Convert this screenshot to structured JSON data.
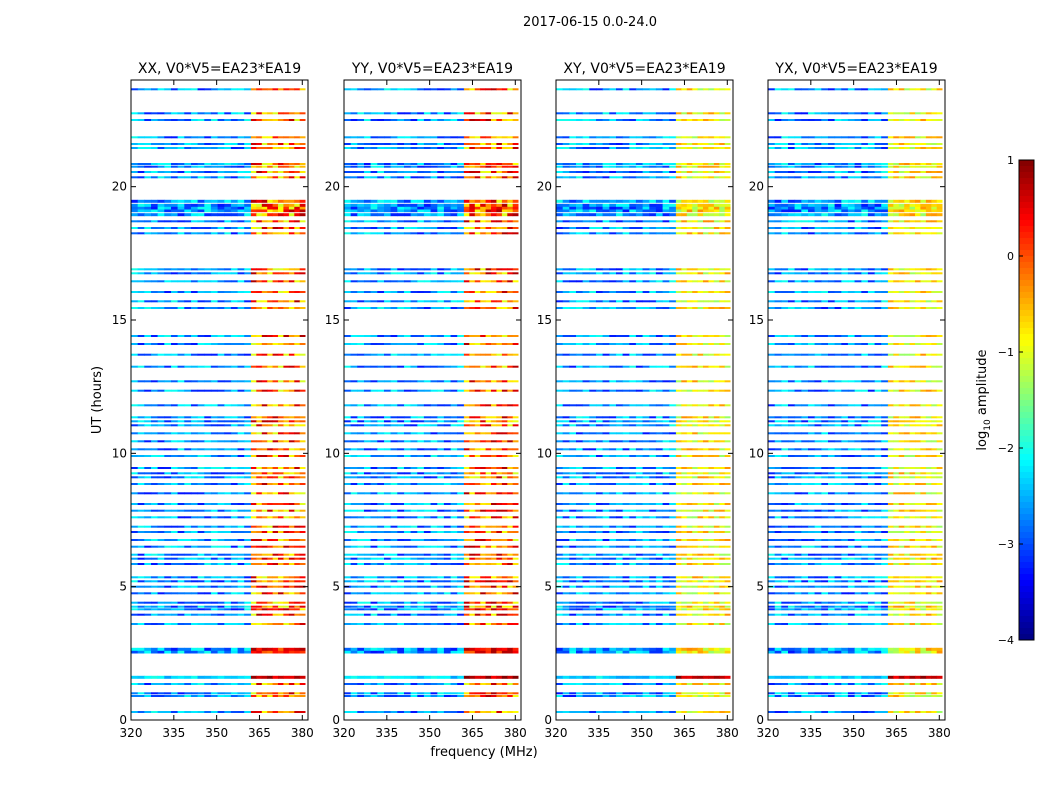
{
  "chart_data": {
    "type": "heatmap",
    "title": "2017-06-15 0.0-24.0",
    "xlabel": "frequency (MHz)",
    "ylabel": "UT (hours)",
    "colorbar_label": "log10 amplitude",
    "colorbar_label_main": "log",
    "colorbar_label_sub": "10",
    "colorbar_label_rest": " amplitude",
    "xlim": [
      320,
      382
    ],
    "ylim": [
      0,
      24
    ],
    "x_ticks": [
      320,
      335,
      350,
      365,
      380
    ],
    "y_ticks": [
      0,
      5,
      10,
      15,
      20
    ],
    "colorbar_range": [
      -4,
      1
    ],
    "colorbar_ticks": [
      1,
      0,
      -1,
      -2,
      -3,
      -4
    ],
    "colormap": "jet",
    "high_amplitude_band_mhz": [
      362,
      381
    ],
    "panels": [
      {
        "title": "XX, V0*V5=EA23*EA19",
        "pol": "XX"
      },
      {
        "title": "YY, V0*V5=EA23*EA19",
        "pol": "YY"
      },
      {
        "title": "XY, V0*V5=EA23*EA19",
        "pol": "XY"
      },
      {
        "title": "YX, V0*V5=EA23*EA19",
        "pol": "YX"
      }
    ],
    "observation_rows_ut_hours": [
      0.3,
      0.9,
      1.0,
      1.35,
      1.6,
      2.55,
      2.65,
      3.6,
      3.95,
      4.15,
      4.25,
      4.4,
      4.75,
      5.0,
      5.2,
      5.35,
      5.85,
      6.05,
      6.2,
      6.5,
      6.75,
      7.05,
      7.25,
      7.6,
      7.85,
      8.1,
      8.5,
      8.85,
      9.1,
      9.25,
      9.45,
      9.9,
      10.15,
      10.45,
      10.75,
      11.05,
      11.2,
      11.35,
      11.8,
      12.35,
      12.7,
      13.25,
      13.7,
      14.1,
      14.4,
      15.45,
      15.7,
      16.05,
      16.45,
      16.75,
      16.9,
      18.25,
      18.45,
      18.7,
      18.95,
      19.1,
      19.2,
      19.3,
      19.45,
      20.35,
      20.55,
      20.75,
      20.85,
      21.45,
      21.6,
      21.85,
      22.5,
      22.75,
      23.65
    ]
  }
}
